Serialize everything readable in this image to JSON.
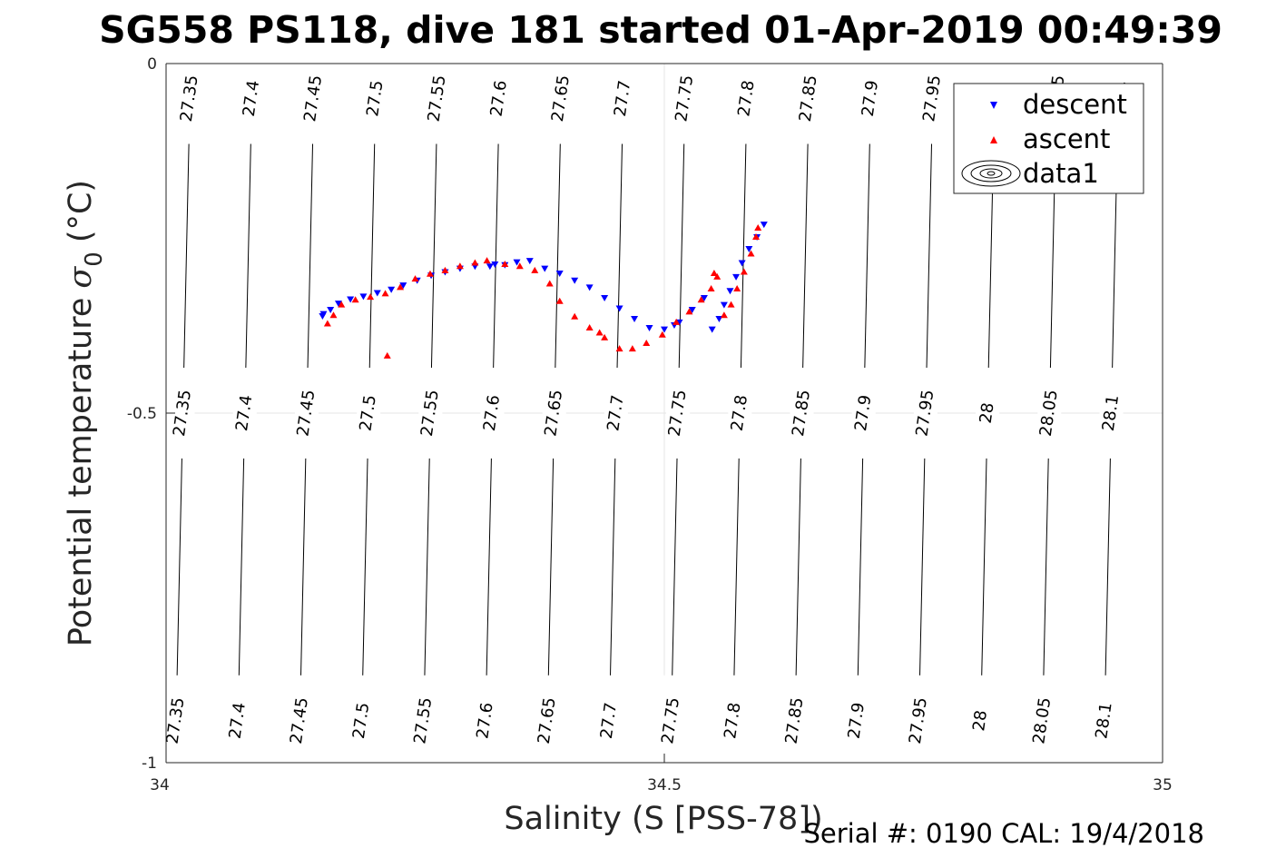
{
  "chart_data": {
    "type": "scatter",
    "title": "SG558 PS118, dive 181 started 01-Apr-2019 00:49:39",
    "xlabel": "Salinity (S [PSS-78])",
    "ylabel": "Potential temperature",
    "ylabel_symbol": "σ",
    "ylabel_subscript": "0",
    "ylabel_unit": "(°C)",
    "xlim": [
      34,
      35
    ],
    "ylim": [
      -1,
      0
    ],
    "x_ticks": [
      "34",
      "34.5",
      "35"
    ],
    "y_ticks": [
      "0",
      "-0.5",
      "-1"
    ],
    "grid": true,
    "legend_position": "top-right",
    "legend": [
      "descent",
      "ascent",
      "data1"
    ],
    "series": [
      {
        "name": "descent",
        "marker": "triangle-down",
        "color": "#0000ff",
        "points": [
          [
            34.157,
            -0.361
          ],
          [
            34.165,
            -0.352
          ],
          [
            34.173,
            -0.343
          ],
          [
            34.185,
            -0.337
          ],
          [
            34.198,
            -0.333
          ],
          [
            34.212,
            -0.328
          ],
          [
            34.226,
            -0.323
          ],
          [
            34.238,
            -0.317
          ],
          [
            34.252,
            -0.31
          ],
          [
            34.266,
            -0.303
          ],
          [
            34.28,
            -0.298
          ],
          [
            34.295,
            -0.293
          ],
          [
            34.31,
            -0.29
          ],
          [
            34.325,
            -0.29
          ],
          [
            34.34,
            -0.288
          ],
          [
            34.352,
            -0.284
          ],
          [
            34.365,
            -0.282
          ],
          [
            34.38,
            -0.293
          ],
          [
            34.395,
            -0.3
          ],
          [
            34.41,
            -0.31
          ],
          [
            34.425,
            -0.32
          ],
          [
            34.44,
            -0.335
          ],
          [
            34.455,
            -0.35
          ],
          [
            34.47,
            -0.365
          ],
          [
            34.485,
            -0.378
          ],
          [
            34.5,
            -0.38
          ],
          [
            34.515,
            -0.37
          ],
          [
            34.528,
            -0.352
          ],
          [
            34.54,
            -0.335
          ],
          [
            34.548,
            -0.38
          ],
          [
            34.555,
            -0.365
          ],
          [
            34.56,
            -0.345
          ],
          [
            34.566,
            -0.325
          ],
          [
            34.572,
            -0.305
          ],
          [
            34.578,
            -0.285
          ],
          [
            34.585,
            -0.265
          ],
          [
            34.593,
            -0.248
          ],
          [
            34.6,
            -0.23
          ],
          [
            34.158,
            -0.358
          ],
          [
            34.33,
            -0.287
          ],
          [
            34.51,
            -0.374
          ]
        ]
      },
      {
        "name": "ascent",
        "marker": "triangle-up",
        "color": "#ff0000",
        "points": [
          [
            34.162,
            -0.372
          ],
          [
            34.168,
            -0.36
          ],
          [
            34.176,
            -0.345
          ],
          [
            34.19,
            -0.338
          ],
          [
            34.205,
            -0.334
          ],
          [
            34.22,
            -0.329
          ],
          [
            34.235,
            -0.32
          ],
          [
            34.25,
            -0.308
          ],
          [
            34.265,
            -0.301
          ],
          [
            34.28,
            -0.296
          ],
          [
            34.295,
            -0.29
          ],
          [
            34.31,
            -0.285
          ],
          [
            34.322,
            -0.282
          ],
          [
            34.34,
            -0.287
          ],
          [
            34.355,
            -0.29
          ],
          [
            34.37,
            -0.296
          ],
          [
            34.385,
            -0.315
          ],
          [
            34.395,
            -0.34
          ],
          [
            34.41,
            -0.362
          ],
          [
            34.425,
            -0.378
          ],
          [
            34.44,
            -0.392
          ],
          [
            34.455,
            -0.408
          ],
          [
            34.468,
            -0.408
          ],
          [
            34.482,
            -0.4
          ],
          [
            34.498,
            -0.388
          ],
          [
            34.512,
            -0.37
          ],
          [
            34.525,
            -0.355
          ],
          [
            34.537,
            -0.338
          ],
          [
            34.547,
            -0.322
          ],
          [
            34.553,
            -0.305
          ],
          [
            34.56,
            -0.36
          ],
          [
            34.567,
            -0.345
          ],
          [
            34.573,
            -0.322
          ],
          [
            34.58,
            -0.298
          ],
          [
            34.587,
            -0.272
          ],
          [
            34.592,
            -0.248
          ],
          [
            34.594,
            -0.235
          ],
          [
            34.222,
            -0.418
          ],
          [
            34.55,
            -0.3
          ],
          [
            34.435,
            -0.385
          ]
        ]
      }
    ],
    "contours": [
      27.35,
      27.4,
      27.45,
      27.5,
      27.55,
      27.6,
      27.65,
      27.7,
      27.75,
      27.8,
      27.85,
      27.9,
      27.95,
      28,
      28.05,
      28.1
    ]
  },
  "footer": {
    "serial": "Serial #: 0190  CAL: 19/4/2018"
  }
}
